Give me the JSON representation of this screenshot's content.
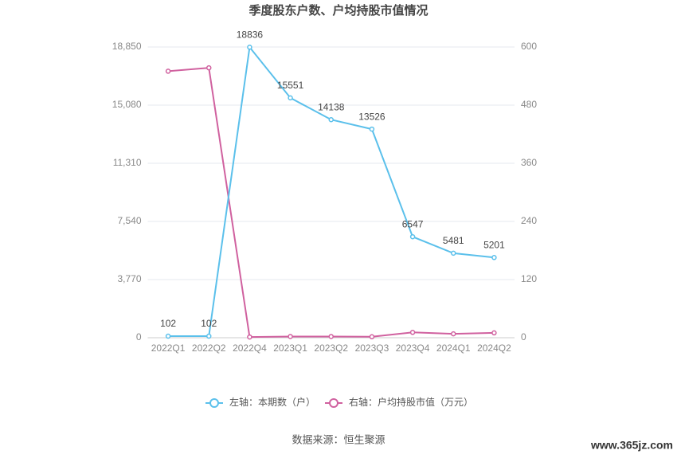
{
  "chart_data": {
    "type": "line",
    "title": "季度股东户数、户均持股市值情况",
    "categories": [
      "2022Q1",
      "2022Q2",
      "2022Q4",
      "2023Q1",
      "2023Q2",
      "2023Q3",
      "2023Q4",
      "2024Q1",
      "2024Q2"
    ],
    "series": [
      {
        "name": "左轴：本期数（户）",
        "color": "#5bc0eb",
        "values": [
          102,
          102,
          18836,
          15551,
          14138,
          13526,
          6547,
          5481,
          5201
        ],
        "data_labels": true
      },
      {
        "name": "右轴：户均持股市值（万元）",
        "color": "#d0619f",
        "axis": "y2",
        "values": [
          550,
          557,
          1.5,
          2.5,
          2.5,
          2,
          11,
          8,
          10
        ]
      }
    ],
    "ylim": [
      0,
      18850
    ],
    "yticks": [
      0,
      {
        "value": 3770,
        "label": "3,770"
      },
      {
        "value": 7540,
        "label": "7,540"
      },
      {
        "value": 11310,
        "label": "11,310"
      },
      {
        "value": 15080,
        "label": "15,080"
      },
      {
        "value": 18850,
        "label": "18,850"
      }
    ],
    "y2lim": [
      0,
      600
    ],
    "y2ticks": [
      0,
      120,
      240,
      360,
      480,
      600
    ],
    "grid": true,
    "legend": "bottom",
    "source": "数据来源：恒生聚源",
    "watermark": "www.365jz.com"
  }
}
